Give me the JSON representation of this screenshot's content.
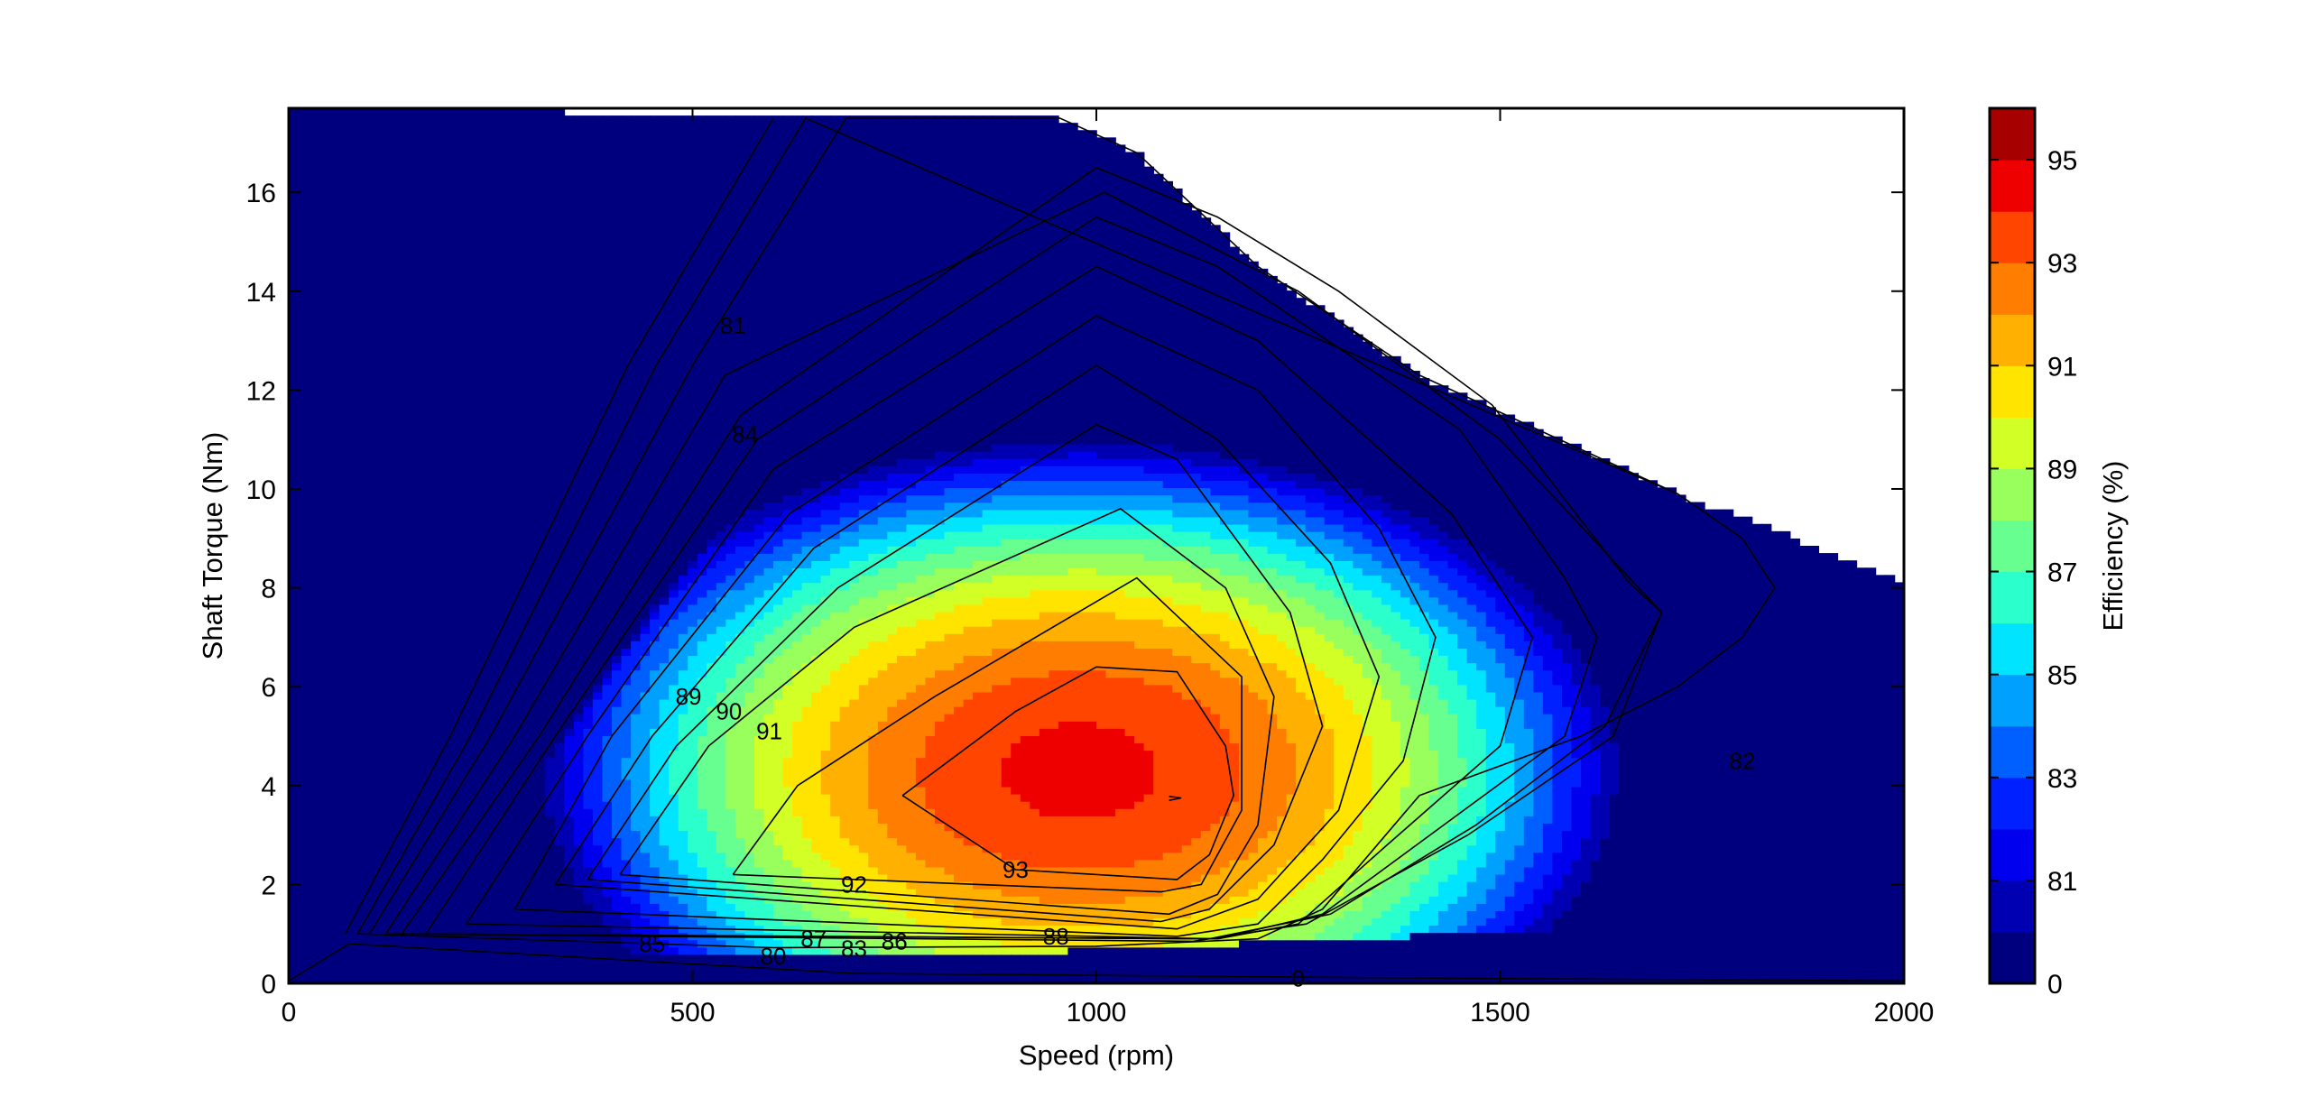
{
  "chart_data": {
    "type": "contour",
    "title": "",
    "xlabel": "Speed  (rpm)",
    "ylabel": "Shaft Torque  (Nm)",
    "xlim": [
      0,
      2000
    ],
    "ylim": [
      0,
      17.7
    ],
    "x_ticks": [
      0,
      500,
      1000,
      1500,
      2000
    ],
    "y_ticks": [
      0,
      2,
      4,
      6,
      8,
      10,
      12,
      14,
      16
    ],
    "grid": false,
    "colorbar": {
      "label": "Efficiency (%)",
      "levels": [
        0,
        80,
        81,
        82,
        83,
        84,
        85,
        86,
        87,
        88,
        89,
        90,
        91,
        92,
        93,
        94,
        95
      ],
      "tick_labels": [
        "0",
        "81",
        "83",
        "85",
        "87",
        "89",
        "91",
        "93",
        "95"
      ],
      "colors": [
        "#00007f",
        "#0000b2",
        "#0000ef",
        "#0020ff",
        "#0060ff",
        "#00a0ff",
        "#00e4ff",
        "#2bffcc",
        "#66ff90",
        "#99ff5d",
        "#d2ff25",
        "#ffe400",
        "#ffb000",
        "#ff7d00",
        "#ff4500",
        "#ef0000",
        "#a60000"
      ]
    },
    "torque_envelope": {
      "speed_rpm": [
        0,
        460,
        955,
        1050,
        1200,
        1400,
        1600,
        1720,
        1850,
        2000
      ],
      "max_torque_nm": [
        17.7,
        17.6,
        17.5,
        16.8,
        14.5,
        12.3,
        10.8,
        9.9,
        9.1,
        8.1
      ]
    },
    "contours": [
      {
        "level": 80,
        "points": [
          [
            0,
            0.05
          ],
          [
            75,
            0.8
          ],
          [
            700,
            0.2
          ],
          [
            1450,
            0.1
          ],
          [
            2000,
            0.05
          ]
        ]
      },
      {
        "level": 81,
        "points": [
          [
            70,
            1.0
          ],
          [
            200,
            5.0
          ],
          [
            420,
            12.5
          ],
          [
            600,
            17.5
          ]
        ]
      },
      {
        "level": 82,
        "points": [
          [
            85,
            1.0
          ],
          [
            225,
            5.0
          ],
          [
            455,
            12.5
          ],
          [
            640,
            17.5
          ],
          [
            1720,
            9.9
          ],
          [
            1800,
            9.0
          ],
          [
            1840,
            8.0
          ],
          [
            1800,
            7.0
          ],
          [
            1720,
            6.0
          ],
          [
            1600,
            5.0
          ],
          [
            1400,
            3.8
          ],
          [
            1280,
            1.5
          ],
          [
            1200,
            0.9
          ],
          [
            1000,
            0.75
          ],
          [
            600,
            0.72
          ],
          [
            85,
            1.0
          ]
        ]
      },
      {
        "level": 83,
        "points": [
          [
            100,
            1.0
          ],
          [
            250,
            5.0
          ],
          [
            500,
            12.5
          ],
          [
            690,
            17.5
          ],
          [
            955,
            17.5
          ],
          [
            1050,
            16.8
          ],
          [
            1200,
            14.5
          ],
          [
            1400,
            12.3
          ],
          [
            1600,
            10.8
          ],
          [
            1720,
            9.9
          ]
        ]
      },
      {
        "level": 84,
        "points": [
          [
            120,
            1.0
          ],
          [
            280,
            5.0
          ],
          [
            540,
            12.3
          ],
          [
            1010,
            16.0
          ],
          [
            1250,
            14.0
          ],
          [
            1500,
            11.0
          ],
          [
            1700,
            7.5
          ],
          [
            1640,
            5.0
          ],
          [
            1460,
            3.0
          ],
          [
            1260,
            1.2
          ],
          [
            1120,
            0.85
          ],
          [
            120,
            1.0
          ]
        ]
      },
      {
        "level": 85,
        "points": [
          [
            140,
            1.0
          ],
          [
            310,
            5.0
          ],
          [
            560,
            11.5
          ],
          [
            1000,
            16.5
          ],
          [
            1150,
            15.5
          ],
          [
            1300,
            14.0
          ],
          [
            1490,
            11.7
          ],
          [
            1660,
            8.1
          ],
          [
            1700,
            7.5
          ],
          [
            1630,
            5.2
          ],
          [
            1470,
            3.2
          ],
          [
            1290,
            1.4
          ],
          [
            1140,
            0.9
          ],
          [
            140,
            1.0
          ]
        ]
      },
      {
        "level": 86,
        "points": [
          [
            170,
            1.0
          ],
          [
            330,
            5.0
          ],
          [
            580,
            11.0
          ],
          [
            1000,
            15.5
          ],
          [
            1150,
            14.5
          ],
          [
            1450,
            11.2
          ],
          [
            1580,
            8.2
          ],
          [
            1620,
            7.0
          ],
          [
            1580,
            5.0
          ],
          [
            1430,
            3.2
          ],
          [
            1280,
            1.4
          ],
          [
            1150,
            0.9
          ],
          [
            170,
            1.0
          ]
        ]
      },
      {
        "level": 87,
        "points": [
          [
            220,
            1.2
          ],
          [
            370,
            5.0
          ],
          [
            600,
            10.4
          ],
          [
            1000,
            14.5
          ],
          [
            1200,
            13.0
          ],
          [
            1440,
            9.5
          ],
          [
            1540,
            7.0
          ],
          [
            1500,
            4.8
          ],
          [
            1360,
            2.8
          ],
          [
            1250,
            1.2
          ],
          [
            1150,
            0.9
          ],
          [
            220,
            1.2
          ]
        ]
      },
      {
        "level": 88,
        "points": [
          [
            280,
            1.5
          ],
          [
            400,
            5.0
          ],
          [
            620,
            9.5
          ],
          [
            1000,
            13.5
          ],
          [
            1200,
            12.0
          ],
          [
            1350,
            9.2
          ],
          [
            1420,
            7.0
          ],
          [
            1380,
            4.5
          ],
          [
            1280,
            2.5
          ],
          [
            1200,
            1.2
          ],
          [
            1100,
            0.95
          ],
          [
            280,
            1.5
          ]
        ]
      },
      {
        "level": 89,
        "points": [
          [
            330,
            2.0
          ],
          [
            450,
            5.0
          ],
          [
            650,
            8.8
          ],
          [
            1000,
            12.5
          ],
          [
            1150,
            11.0
          ],
          [
            1290,
            8.5
          ],
          [
            1350,
            6.2
          ],
          [
            1300,
            3.5
          ],
          [
            1200,
            1.7
          ],
          [
            1100,
            1.1
          ],
          [
            330,
            2.0
          ]
        ]
      },
      {
        "level": 90,
        "points": [
          [
            370,
            2.1
          ],
          [
            480,
            4.8
          ],
          [
            680,
            8.0
          ],
          [
            1000,
            11.3
          ],
          [
            1100,
            10.6
          ],
          [
            1240,
            7.5
          ],
          [
            1280,
            5.2
          ],
          [
            1220,
            2.8
          ],
          [
            1140,
            1.5
          ],
          [
            1080,
            1.25
          ],
          [
            370,
            2.1
          ]
        ]
      },
      {
        "level": 91,
        "points": [
          [
            410,
            2.2
          ],
          [
            520,
            4.8
          ],
          [
            700,
            7.2
          ],
          [
            1030,
            9.6
          ],
          [
            1160,
            8.0
          ],
          [
            1220,
            5.8
          ],
          [
            1200,
            3.2
          ],
          [
            1150,
            1.8
          ],
          [
            1090,
            1.4
          ],
          [
            410,
            2.2
          ]
        ]
      },
      {
        "level": 92,
        "points": [
          [
            550,
            2.2
          ],
          [
            630,
            4.0
          ],
          [
            800,
            5.8
          ],
          [
            1050,
            8.2
          ],
          [
            1180,
            6.2
          ],
          [
            1180,
            3.5
          ],
          [
            1130,
            2.0
          ],
          [
            1080,
            1.85
          ],
          [
            550,
            2.2
          ]
        ]
      },
      {
        "level": 93,
        "points": [
          [
            760,
            3.8
          ],
          [
            900,
            5.5
          ],
          [
            1000,
            6.4
          ],
          [
            1100,
            6.3
          ],
          [
            1160,
            4.8
          ],
          [
            1170,
            3.8
          ],
          [
            1140,
            2.6
          ],
          [
            1100,
            2.1
          ],
          [
            900,
            2.3
          ],
          [
            760,
            3.8
          ]
        ]
      },
      {
        "level": 94,
        "points": [
          [
            1090,
            3.78
          ],
          [
            1105,
            3.75
          ],
          [
            1090,
            3.7
          ]
        ]
      }
    ],
    "contour_labels": [
      {
        "text": "80",
        "x": 600,
        "y": 0.55
      },
      {
        "text": "81",
        "x": 550,
        "y": 13.3
      },
      {
        "text": "82",
        "x": 1800,
        "y": 4.5
      },
      {
        "text": "83",
        "x": 700,
        "y": 0.7
      },
      {
        "text": "84",
        "x": 565,
        "y": 11.1
      },
      {
        "text": "85",
        "x": 450,
        "y": 0.8
      },
      {
        "text": "86",
        "x": 750,
        "y": 0.85
      },
      {
        "text": "87",
        "x": 650,
        "y": 0.9
      },
      {
        "text": "88",
        "x": 950,
        "y": 0.95
      },
      {
        "text": "89",
        "x": 495,
        "y": 5.8
      },
      {
        "text": "90",
        "x": 545,
        "y": 5.5
      },
      {
        "text": "91",
        "x": 595,
        "y": 5.1
      },
      {
        "text": "92",
        "x": 700,
        "y": 2.0
      },
      {
        "text": "93",
        "x": 900,
        "y": 2.3
      },
      {
        "text": "0",
        "x": 1250,
        "y": 0.1
      }
    ]
  }
}
